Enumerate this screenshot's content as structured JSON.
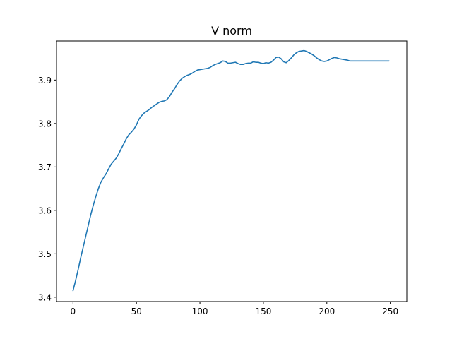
{
  "chart_data": {
    "type": "line",
    "title": "V norm",
    "xlabel": "",
    "ylabel": "",
    "xlim": [
      -13,
      263
    ],
    "ylim": [
      3.39,
      3.99
    ],
    "xticks": [
      0,
      50,
      100,
      150,
      200,
      250
    ],
    "xtick_labels": [
      "0",
      "50",
      "100",
      "150",
      "200",
      "250"
    ],
    "yticks": [
      3.4,
      3.5,
      3.6,
      3.7,
      3.8,
      3.9
    ],
    "ytick_labels": [
      "3.4",
      "3.5",
      "3.6",
      "3.7",
      "3.8",
      "3.9"
    ],
    "grid": false,
    "legend": "none",
    "series": [
      {
        "color": "#1f77b4",
        "x": [
          0,
          2,
          4,
          6,
          8,
          10,
          12,
          14,
          16,
          18,
          20,
          22,
          24,
          26,
          28,
          30,
          32,
          34,
          36,
          38,
          40,
          42,
          44,
          46,
          48,
          50,
          52,
          54,
          56,
          58,
          60,
          62,
          64,
          66,
          68,
          70,
          72,
          74,
          76,
          78,
          80,
          82,
          84,
          86,
          88,
          90,
          92,
          94,
          96,
          98,
          100,
          102,
          104,
          106,
          108,
          110,
          112,
          114,
          116,
          118,
          120,
          122,
          124,
          126,
          128,
          130,
          132,
          134,
          136,
          138,
          140,
          142,
          144,
          146,
          148,
          150,
          152,
          154,
          156,
          158,
          160,
          162,
          164,
          166,
          168,
          170,
          172,
          174,
          176,
          178,
          180,
          182,
          184,
          186,
          188,
          190,
          192,
          194,
          196,
          198,
          200,
          202,
          204,
          206,
          208,
          210,
          212,
          214,
          216,
          218,
          220,
          222,
          224,
          226,
          228,
          230,
          232,
          234,
          236,
          238,
          240,
          242,
          244,
          246,
          248,
          249
        ],
        "y": [
          3.415,
          3.438,
          3.463,
          3.49,
          3.515,
          3.54,
          3.565,
          3.59,
          3.612,
          3.632,
          3.65,
          3.665,
          3.675,
          3.684,
          3.695,
          3.706,
          3.713,
          3.72,
          3.73,
          3.742,
          3.753,
          3.765,
          3.774,
          3.78,
          3.787,
          3.797,
          3.81,
          3.818,
          3.824,
          3.828,
          3.832,
          3.837,
          3.841,
          3.845,
          3.849,
          3.851,
          3.852,
          3.855,
          3.862,
          3.872,
          3.88,
          3.89,
          3.898,
          3.904,
          3.908,
          3.911,
          3.913,
          3.916,
          3.92,
          3.923,
          3.924,
          3.925,
          3.926,
          3.927,
          3.929,
          3.933,
          3.936,
          3.938,
          3.94,
          3.944,
          3.943,
          3.939,
          3.939,
          3.94,
          3.941,
          3.938,
          3.936,
          3.936,
          3.938,
          3.939,
          3.939,
          3.942,
          3.941,
          3.941,
          3.939,
          3.938,
          3.94,
          3.939,
          3.941,
          3.946,
          3.952,
          3.953,
          3.949,
          3.942,
          3.94,
          3.945,
          3.951,
          3.958,
          3.963,
          3.966,
          3.967,
          3.968,
          3.966,
          3.963,
          3.96,
          3.956,
          3.951,
          3.947,
          3.944,
          3.943,
          3.944,
          3.947,
          3.95,
          3.952,
          3.951,
          3.949,
          3.948,
          3.947,
          3.946,
          3.944,
          3.944,
          3.944,
          3.944,
          3.944,
          3.944,
          3.944,
          3.944,
          3.944,
          3.944,
          3.944,
          3.944,
          3.944,
          3.944,
          3.944,
          3.944,
          3.944
        ]
      }
    ]
  }
}
